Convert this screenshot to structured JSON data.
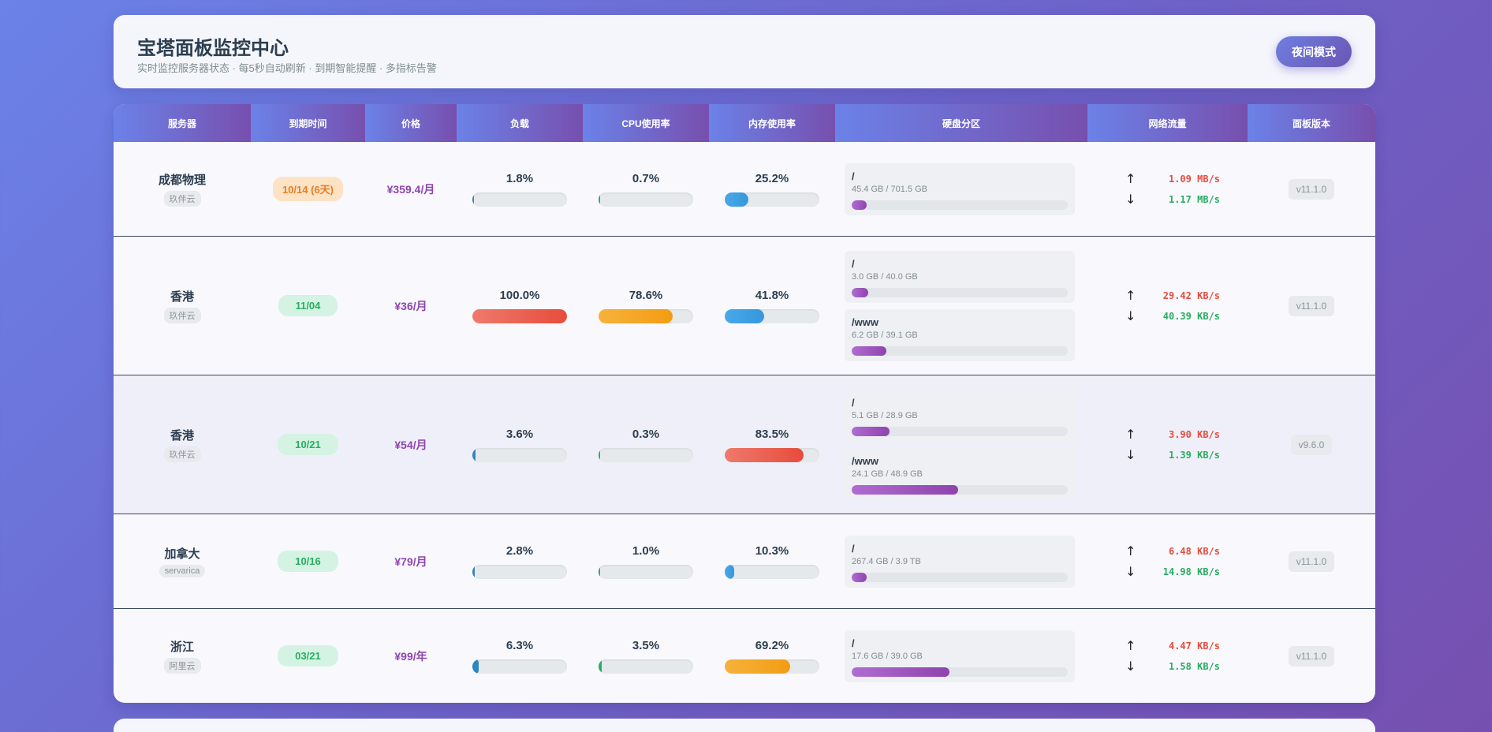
{
  "header": {
    "title": "宝塔面板监控中心",
    "subtitle": "实时监控服务器状态 · 每5秒自动刷新 · 到期智能提醒 · 多指标告警",
    "night_mode": "夜间模式"
  },
  "columns": [
    "服务器",
    "到期时间",
    "价格",
    "负载",
    "CPU使用率",
    "内存使用率",
    "硬盘分区",
    "网络流量",
    "面板版本"
  ],
  "rows": [
    {
      "name": "成都物理",
      "provider": "玖伴云",
      "expire": "10/14 (6天)",
      "expire_status": "warning",
      "price": "¥359.4/月",
      "load": {
        "text": "1.8%",
        "value": 1.8
      },
      "cpu": {
        "text": "0.7%",
        "value": 0.7
      },
      "mem": {
        "text": "25.2%",
        "value": 25.2
      },
      "disks": [
        {
          "path": "/",
          "usage": "45.4 GB / 701.5 GB",
          "percent": 6.5
        }
      ],
      "up": "1.09 MB/s",
      "down": "1.17 MB/s",
      "version": "v11.1.0"
    },
    {
      "name": "香港",
      "provider": "玖伴云",
      "expire": "11/04",
      "expire_status": "ok",
      "price": "¥36/月",
      "load": {
        "text": "100.0%",
        "value": 100.0
      },
      "cpu": {
        "text": "78.6%",
        "value": 78.6
      },
      "mem": {
        "text": "41.8%",
        "value": 41.8
      },
      "disks": [
        {
          "path": "/",
          "usage": "3.0 GB / 40.0 GB",
          "percent": 7.5
        },
        {
          "path": "/www",
          "usage": "6.2 GB / 39.1 GB",
          "percent": 15.9
        }
      ],
      "up": "29.42 KB/s",
      "down": "40.39 KB/s",
      "version": "v11.1.0"
    },
    {
      "name": "香港",
      "provider": "玖伴云",
      "expire": "10/21",
      "expire_status": "ok",
      "price": "¥54/月",
      "load": {
        "text": "3.6%",
        "value": 3.6
      },
      "cpu": {
        "text": "0.3%",
        "value": 0.3
      },
      "mem": {
        "text": "83.5%",
        "value": 83.5
      },
      "disks": [
        {
          "path": "/",
          "usage": "5.1 GB / 28.9 GB",
          "percent": 17.6
        },
        {
          "path": "/www",
          "usage": "24.1 GB / 48.9 GB",
          "percent": 49.3
        }
      ],
      "up": "3.90 KB/s",
      "down": "1.39 KB/s",
      "version": "v9.6.0"
    },
    {
      "name": "加拿大",
      "provider": "servarica",
      "expire": "10/16",
      "expire_status": "ok",
      "price": "¥79/月",
      "load": {
        "text": "2.8%",
        "value": 2.8
      },
      "cpu": {
        "text": "1.0%",
        "value": 1.0
      },
      "mem": {
        "text": "10.3%",
        "value": 10.3
      },
      "disks": [
        {
          "path": "/",
          "usage": "267.4 GB / 3.9 TB",
          "percent": 6.7
        }
      ],
      "up": "6.48 KB/s",
      "down": "14.98 KB/s",
      "version": "v11.1.0"
    },
    {
      "name": "浙江",
      "provider": "阿里云",
      "expire": "03/21",
      "expire_status": "ok",
      "price": "¥99/年",
      "load": {
        "text": "6.3%",
        "value": 6.3
      },
      "cpu": {
        "text": "3.5%",
        "value": 3.5
      },
      "mem": {
        "text": "69.2%",
        "value": 69.2
      },
      "disks": [
        {
          "path": "/",
          "usage": "17.6 GB / 39.0 GB",
          "percent": 45.1
        }
      ],
      "up": "4.47 KB/s",
      "down": "1.58 KB/s",
      "version": "v11.1.0"
    }
  ],
  "icons": {
    "up": "arrow-up-icon",
    "down": "arrow-down-icon"
  },
  "colors": {
    "load_low": "#2e86c1",
    "cpu_low": "#27ae60",
    "mem_normal": "#3498db",
    "warning": "#f39c12",
    "danger": "#e74c3c",
    "disk": "#8e44ad"
  }
}
